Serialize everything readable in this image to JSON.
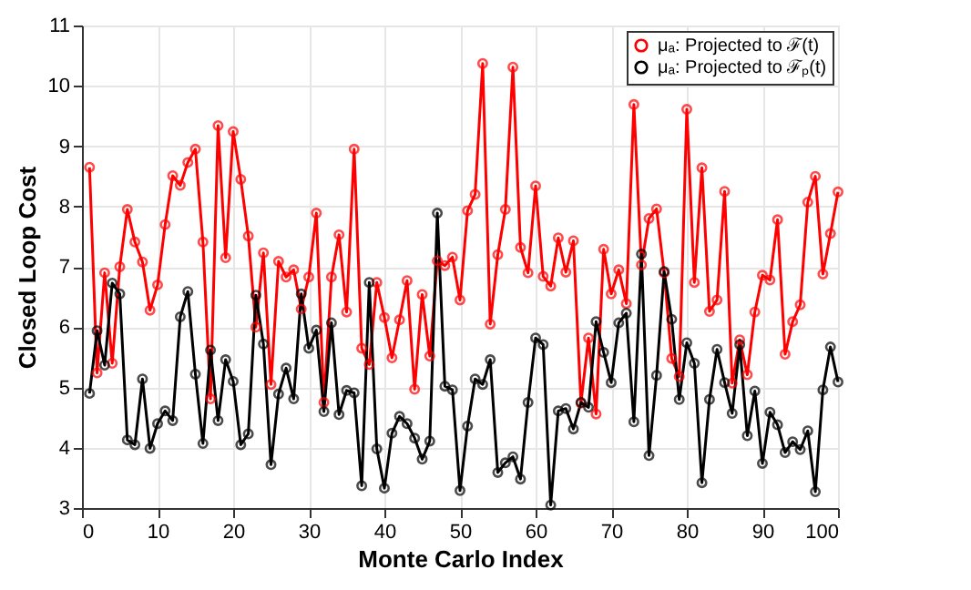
{
  "chart_data": {
    "type": "line",
    "xlabel": "Monte Carlo Index",
    "ylabel": "Closed Loop Cost",
    "x": [
      1,
      2,
      3,
      4,
      5,
      6,
      7,
      8,
      9,
      10,
      11,
      12,
      13,
      14,
      15,
      16,
      17,
      18,
      19,
      20,
      21,
      22,
      23,
      24,
      25,
      26,
      27,
      28,
      29,
      30,
      31,
      32,
      33,
      34,
      35,
      36,
      37,
      38,
      39,
      40,
      41,
      42,
      43,
      44,
      45,
      46,
      47,
      48,
      49,
      50,
      51,
      52,
      53,
      54,
      55,
      56,
      57,
      58,
      59,
      60,
      61,
      62,
      63,
      64,
      65,
      66,
      67,
      68,
      69,
      70,
      71,
      72,
      73,
      74,
      75,
      76,
      77,
      78,
      79,
      80,
      81,
      82,
      83,
      84,
      85,
      86,
      87,
      88,
      89,
      90,
      91,
      92,
      93,
      94,
      95,
      96,
      97,
      98,
      99,
      100
    ],
    "series": [
      {
        "name": "μₐ: Projected to ℱ(t)",
        "color": "#ff0000",
        "values": [
          8.65,
          5.24,
          6.9,
          5.4,
          7.0,
          7.95,
          7.41,
          7.08,
          6.28,
          6.7,
          7.7,
          8.51,
          8.35,
          8.73,
          8.95,
          7.41,
          4.81,
          9.34,
          7.15,
          9.24,
          8.45,
          7.51,
          6.0,
          7.23,
          5.05,
          7.09,
          6.83,
          6.95,
          6.3,
          6.83,
          7.89,
          4.75,
          6.83,
          7.53,
          6.25,
          8.95,
          5.65,
          5.38,
          6.74,
          6.16,
          5.49,
          6.12,
          6.77,
          4.97,
          6.54,
          5.52,
          7.1,
          7.02,
          7.16,
          6.45,
          7.93,
          8.2,
          10.37,
          6.05,
          7.2,
          7.95,
          10.31,
          7.32,
          6.9,
          8.34,
          6.84,
          6.68,
          7.48,
          6.91,
          7.43,
          4.74,
          5.82,
          4.56,
          7.29,
          6.55,
          6.95,
          6.39,
          9.69,
          7.03,
          7.8,
          7.96,
          6.9,
          5.48,
          5.18,
          9.61,
          6.74,
          8.64,
          6.26,
          6.45,
          8.25,
          5.07,
          5.79,
          5.21,
          6.25,
          6.86,
          6.78,
          7.78,
          5.55,
          6.09,
          6.37,
          8.07,
          8.5,
          6.88,
          7.55,
          8.24
        ]
      },
      {
        "name": "μₐ: Projected to ℱₚ(t)",
        "color": "#000000",
        "values": [
          4.9,
          5.94,
          5.37,
          6.73,
          6.55,
          4.13,
          4.05,
          5.14,
          3.99,
          4.4,
          4.61,
          4.45,
          6.17,
          6.59,
          5.22,
          4.07,
          5.62,
          4.45,
          5.46,
          5.1,
          4.05,
          4.23,
          6.53,
          5.72,
          3.72,
          4.89,
          5.32,
          4.81,
          6.55,
          5.65,
          5.95,
          4.6,
          6.07,
          4.55,
          4.95,
          4.91,
          3.37,
          6.74,
          3.98,
          3.33,
          4.24,
          4.52,
          4.4,
          4.16,
          3.81,
          4.11,
          7.89,
          5.02,
          4.96,
          3.29,
          4.36,
          5.14,
          5.05,
          5.46,
          3.59,
          3.75,
          3.85,
          3.48,
          4.75,
          5.82,
          5.71,
          3.05,
          4.61,
          4.65,
          4.31,
          4.75,
          4.67,
          6.09,
          5.58,
          5.08,
          6.07,
          6.23,
          4.43,
          7.21,
          3.87,
          5.2,
          6.92,
          6.13,
          4.8,
          5.74,
          5.4,
          3.42,
          4.8,
          5.63,
          5.08,
          4.57,
          5.71,
          4.2,
          4.94,
          3.74,
          4.59,
          4.38,
          3.92,
          4.1,
          3.97,
          4.28,
          3.27,
          4.96,
          5.67,
          5.09
        ]
      }
    ],
    "xlim": [
      0,
      100
    ],
    "xticks": [
      0,
      10,
      20,
      30,
      40,
      50,
      60,
      70,
      80,
      90,
      100
    ],
    "ylim": [
      3,
      11
    ],
    "yticks": [
      3,
      4,
      5,
      6,
      7,
      8,
      9,
      10,
      11
    ],
    "grid": true,
    "legend": "top right",
    "marker": "circle",
    "line_style": "solid"
  }
}
